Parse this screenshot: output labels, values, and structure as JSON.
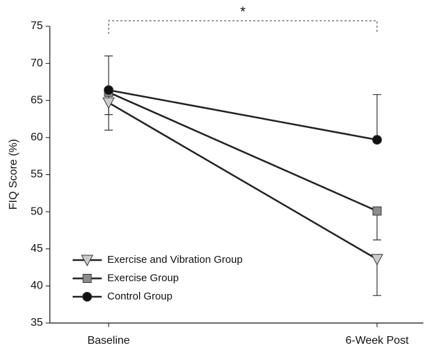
{
  "chart_data": {
    "type": "line",
    "ylabel": "FIQ Score (%)",
    "categories": [
      "Baseline",
      "6-Week Post"
    ],
    "ylim": [
      35,
      75
    ],
    "yticks": [
      35,
      40,
      45,
      50,
      55,
      60,
      65,
      70,
      75
    ],
    "annotation": "*",
    "series": [
      {
        "name": "Exercise and Vibration Group",
        "color": "#cccccc",
        "marker": "triangle-down",
        "values": [
          64.7,
          43.6
        ],
        "errors": [
          3.7,
          4.9
        ],
        "error_direction": "down"
      },
      {
        "name": "Exercise Group",
        "color": "#8c8c8c",
        "marker": "square",
        "values": [
          66.1,
          50.1
        ],
        "errors": [
          3.0,
          3.9
        ],
        "error_direction": "down"
      },
      {
        "name": "Control Group",
        "color": "#111111",
        "marker": "circle",
        "values": [
          66.4,
          59.7
        ],
        "errors": [
          4.6,
          6.1
        ],
        "error_direction": "up"
      }
    ]
  }
}
